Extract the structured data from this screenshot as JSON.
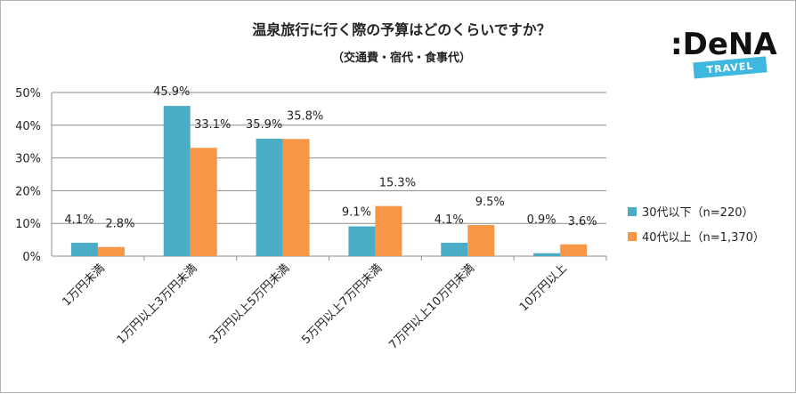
{
  "chart_data": {
    "type": "bar",
    "title": "温泉旅行に行く際の予算はどのくらいですか？",
    "subtitle": "（交通費・宿代・食事代）",
    "categories": [
      "1万円未満",
      "1万円以上3万円未満",
      "3万円以上5万円未満",
      "5万円以上7万円未満",
      "7万円以上10万円未満",
      "10万円以上"
    ],
    "series": [
      {
        "name": "30代以下（n=220）",
        "values": [
          4.1,
          45.9,
          35.9,
          9.1,
          4.1,
          0.9
        ],
        "labels": [
          "4.1%",
          "45.9%",
          "35.9%",
          "9.1%",
          "4.1%",
          "0.9%"
        ],
        "color": "#4BACC6"
      },
      {
        "name": "40代以上（n=1,370）",
        "values": [
          2.8,
          33.1,
          35.8,
          15.3,
          9.5,
          3.6
        ],
        "labels": [
          "2.8%",
          "33.1%",
          "35.8%",
          "15.3%",
          "9.5%",
          "3.6%"
        ],
        "color": "#F79646"
      }
    ],
    "ylim": [
      0,
      50
    ],
    "yticks": [
      "0%",
      "10%",
      "20%",
      "30%",
      "40%",
      "50%"
    ],
    "ytick_values": [
      0,
      10,
      20,
      30,
      40,
      50
    ],
    "grid": true,
    "legend_position": "right"
  },
  "logo": {
    "brand": ":DeNA",
    "sub": "TRAVEL",
    "band_color": "#3FB8E0"
  }
}
